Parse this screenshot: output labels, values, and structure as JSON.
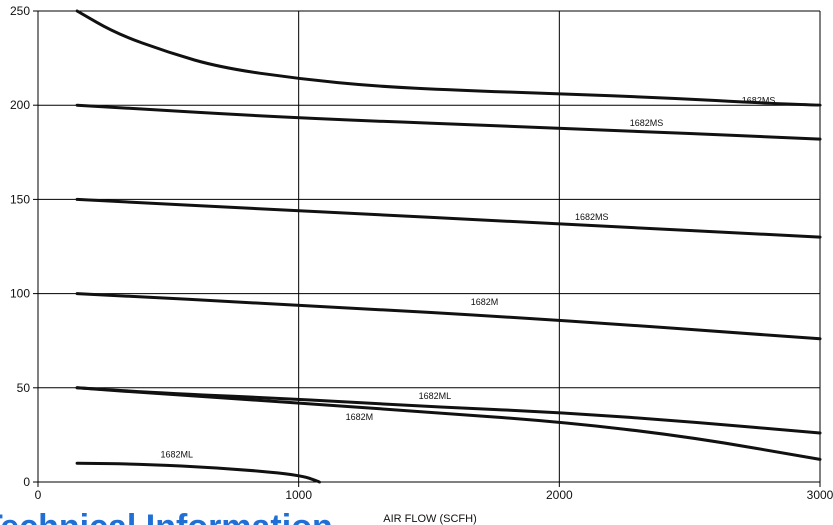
{
  "chart_data": {
    "type": "line",
    "title": "",
    "xlabel": "AIR FLOW (SCFH)",
    "ylabel": "",
    "xlim": [
      0,
      3000
    ],
    "ylim": [
      0,
      250
    ],
    "xticks": [
      "0",
      "1000",
      "2000",
      "3000"
    ],
    "yticks": [
      "0",
      "50",
      "100",
      "150",
      "200",
      "250"
    ],
    "grid": true,
    "series": [
      {
        "name": "1682MS",
        "x": [
          150,
          300,
          500,
          700,
          1000,
          1300,
          1600,
          2000,
          2400,
          2800,
          3000
        ],
        "y": [
          250,
          238,
          228,
          220,
          214,
          210,
          208,
          206,
          204,
          201,
          200
        ]
      },
      {
        "name": "1682MS",
        "x": [
          150,
          1000,
          2000,
          3000
        ],
        "y": [
          200,
          193,
          188,
          182
        ]
      },
      {
        "name": "1682MS",
        "x": [
          150,
          1000,
          2000,
          3000
        ],
        "y": [
          150,
          144,
          137,
          130
        ]
      },
      {
        "name": "1682M",
        "x": [
          150,
          1000,
          2000,
          3000
        ],
        "y": [
          100,
          94,
          86,
          76
        ]
      },
      {
        "name": "1682ML",
        "x": [
          150,
          500,
          1000,
          1500,
          2000,
          2500,
          3000
        ],
        "y": [
          50,
          47,
          44,
          40,
          37,
          32,
          26
        ]
      },
      {
        "name": "1682M",
        "x": [
          150,
          500,
          1000,
          1500,
          2000,
          2500,
          3000
        ],
        "y": [
          50,
          46.5,
          42,
          37,
          32,
          24,
          12
        ]
      },
      {
        "name": "1682ML",
        "x": [
          150,
          400,
          700,
          1000,
          1080
        ],
        "y": [
          10,
          9.5,
          7.5,
          4,
          0
        ]
      }
    ],
    "labels": [
      {
        "text": "1682MS",
        "x": 2700,
        "y": 201
      },
      {
        "text": "1682MS",
        "x": 2270,
        "y": 189
      },
      {
        "text": "1682MS",
        "x": 2060,
        "y": 139
      },
      {
        "text": "1682M",
        "x": 1660,
        "y": 94
      },
      {
        "text": "1682ML",
        "x": 1460,
        "y": 44
      },
      {
        "text": "1682M",
        "x": 1180,
        "y": 33
      },
      {
        "text": "1682ML",
        "x": 470,
        "y": 13
      }
    ]
  },
  "footer_fragment": {
    "text": "Technical Information",
    "color": "#1f6fd6"
  }
}
